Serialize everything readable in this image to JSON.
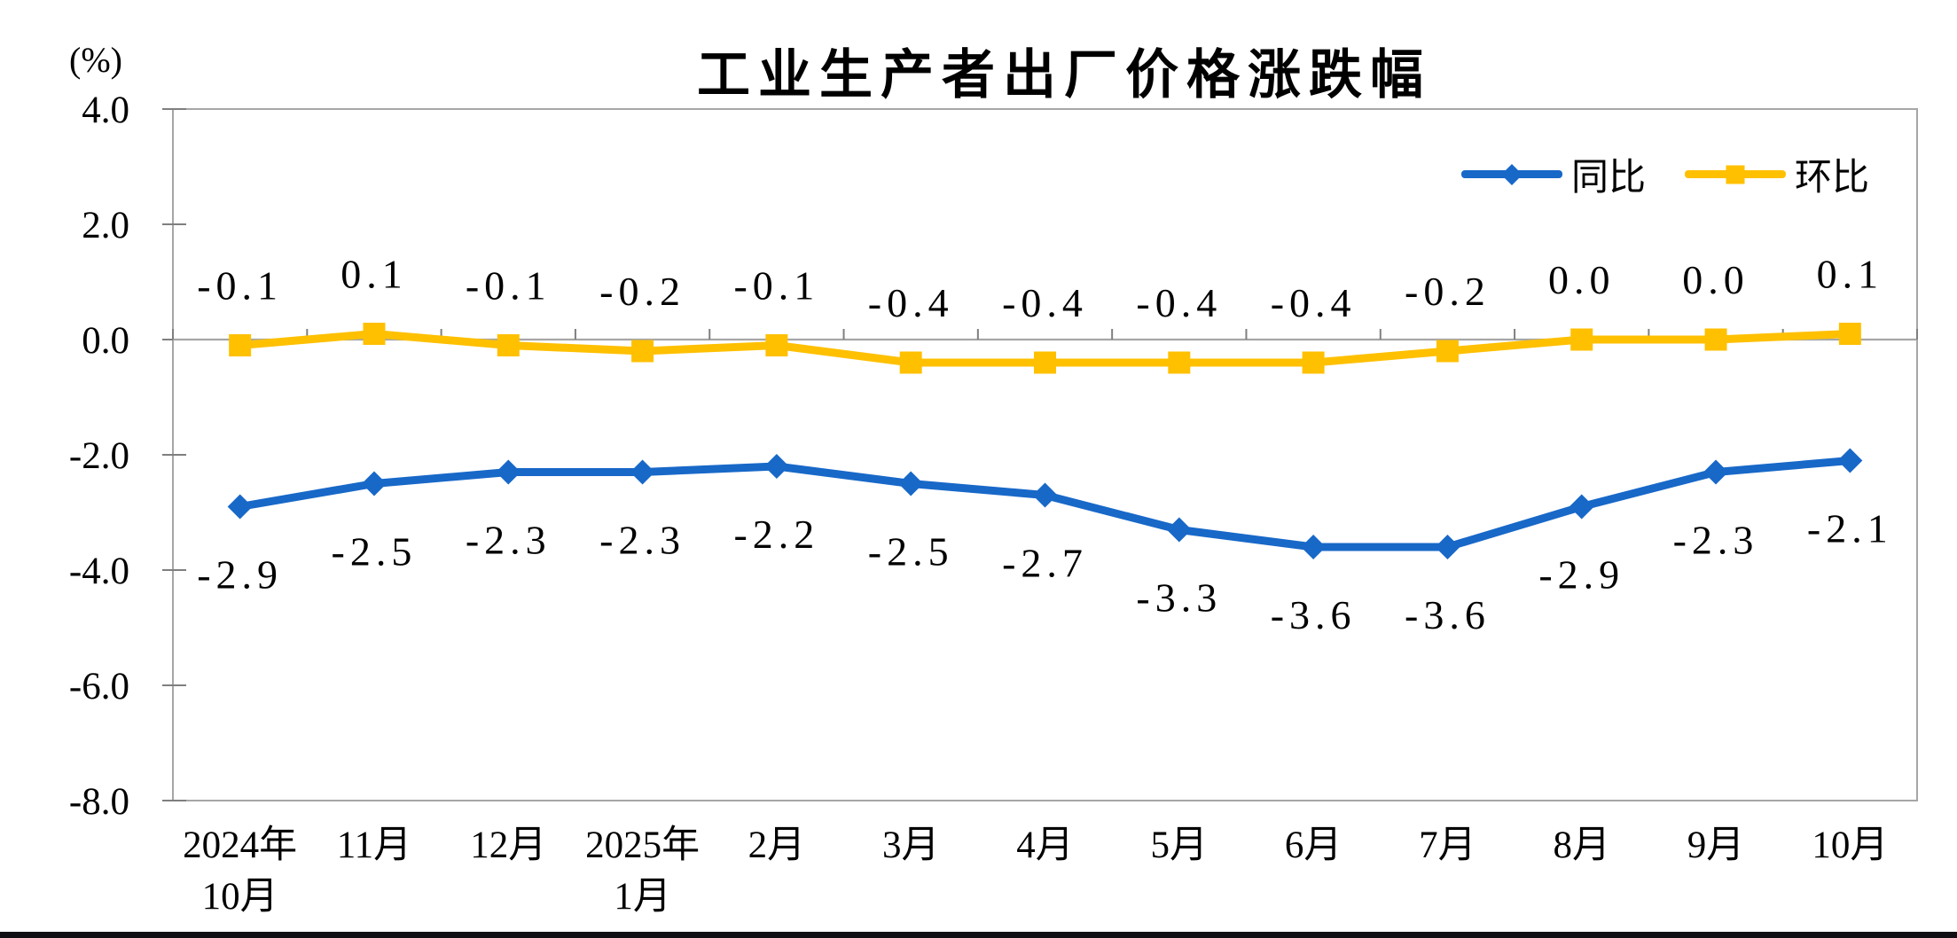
{
  "title": "工业生产者出厂价格涨跌幅",
  "unit_label": "(%)",
  "colors": {
    "series_yoy": "#1868C8",
    "series_mom": "#FFC000",
    "plot_border": "#A6A6A6",
    "zero_line": "#A6A6A6",
    "tick": "#7F7F7F",
    "text": "#000000",
    "bottom_divider": "#101014"
  },
  "legend": [
    {
      "label": "同比",
      "color": "#1868C8",
      "marker": "diamond"
    },
    {
      "label": "环比",
      "color": "#FFC000",
      "marker": "square"
    }
  ],
  "chart_data": {
    "type": "line",
    "title": "工业生产者出厂价格涨跌幅",
    "ylabel": "(%)",
    "xlabel": "",
    "categories": [
      "2024年10月",
      "11月",
      "12月",
      "2025年1月",
      "2月",
      "3月",
      "4月",
      "5月",
      "6月",
      "7月",
      "8月",
      "9月",
      "10月"
    ],
    "x_tick_lines": [
      [
        "2024年",
        "10月"
      ],
      [
        "11月"
      ],
      [
        "12月"
      ],
      [
        "2025年",
        "1月"
      ],
      [
        "2月"
      ],
      [
        "3月"
      ],
      [
        "4月"
      ],
      [
        "5月"
      ],
      [
        "6月"
      ],
      [
        "7月"
      ],
      [
        "8月"
      ],
      [
        "9月"
      ],
      [
        "10月"
      ]
    ],
    "series": [
      {
        "name": "同比",
        "color": "#1868C8",
        "marker": "diamond",
        "label_position": "below",
        "values": [
          -2.9,
          -2.5,
          -2.3,
          -2.3,
          -2.2,
          -2.5,
          -2.7,
          -3.3,
          -3.6,
          -3.6,
          -2.9,
          -2.3,
          -2.1
        ],
        "labels": [
          "-2.9",
          "-2.5",
          "-2.3",
          "-2.3",
          "-2.2",
          "-2.5",
          "-2.7",
          "-3.3",
          "-3.6",
          "-3.6",
          "-2.9",
          "-2.3",
          "-2.1"
        ]
      },
      {
        "name": "环比",
        "color": "#FFC000",
        "marker": "square",
        "label_position": "above",
        "values": [
          -0.1,
          0.1,
          -0.1,
          -0.2,
          -0.1,
          -0.4,
          -0.4,
          -0.4,
          -0.4,
          -0.2,
          0.0,
          0.0,
          0.1
        ],
        "labels": [
          "-0.1",
          "0.1",
          "-0.1",
          "-0.2",
          "-0.1",
          "-0.4",
          "-0.4",
          "-0.4",
          "-0.4",
          "-0.2",
          "0.0",
          "0.0",
          "0.1"
        ]
      }
    ],
    "ylim": [
      -8.0,
      4.0
    ],
    "y_ticks": [
      4.0,
      2.0,
      0.0,
      -2.0,
      -4.0,
      -6.0,
      -8.0
    ],
    "y_tick_labels": [
      "4.0",
      "2.0",
      "0.0",
      "-2.0",
      "-4.0",
      "-6.0",
      "-8.0"
    ],
    "grid": "zero-line-only",
    "legend_position": "top-right"
  }
}
